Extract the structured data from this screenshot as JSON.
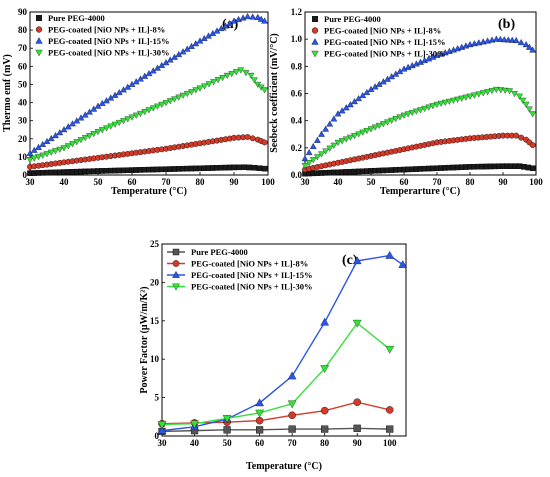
{
  "chart_data": [
    {
      "type": "scatter",
      "panel": "(a)",
      "xlabel": "Temperature (°C)",
      "ylabel": "Thermo emf (mV)",
      "xlim": [
        30,
        100
      ],
      "ylim": [
        0,
        90
      ],
      "xticks": [
        30,
        40,
        50,
        60,
        70,
        80,
        90,
        100
      ],
      "yticks": [
        0,
        10,
        20,
        30,
        40,
        50,
        60,
        70,
        80,
        90
      ],
      "legend_position": "top-left",
      "series": [
        {
          "name": "Pure PEG-4000",
          "marker": "square",
          "color": "#1a1a1a",
          "points": [
            [
              30,
              1.0
            ],
            [
              40,
              1.6
            ],
            [
              50,
              2.2
            ],
            [
              60,
              2.7
            ],
            [
              70,
              3.2
            ],
            [
              80,
              3.7
            ],
            [
              90,
              4.2
            ],
            [
              93,
              4.3
            ],
            [
              96,
              4.0
            ],
            [
              99,
              3.5
            ]
          ]
        },
        {
          "name": "PEG-coated [NiO NPs + IL]-8%",
          "marker": "circle",
          "color": "#d43a2a",
          "points": [
            [
              30,
              4.5
            ],
            [
              40,
              7.0
            ],
            [
              50,
              9.5
            ],
            [
              60,
              12.0
            ],
            [
              70,
              14.5
            ],
            [
              80,
              17.5
            ],
            [
              90,
              20.5
            ],
            [
              94,
              21.0
            ],
            [
              97,
              19.5
            ],
            [
              99,
              18.0
            ]
          ]
        },
        {
          "name": "PEG-coated [NiO NPs + IL]-15%",
          "marker": "triangle-up",
          "color": "#2a55e6",
          "points": [
            [
              30,
              12.0
            ],
            [
              40,
              25.0
            ],
            [
              50,
              38.0
            ],
            [
              60,
              50.0
            ],
            [
              70,
              62.0
            ],
            [
              80,
              74.0
            ],
            [
              90,
              85.0
            ],
            [
              94,
              87.5
            ],
            [
              97,
              87.0
            ],
            [
              99,
              85.0
            ]
          ]
        },
        {
          "name": "PEG-coated [NiO NPs + IL]-30%",
          "marker": "triangle-down",
          "color": "#35e03a",
          "points": [
            [
              30,
              8.5
            ],
            [
              40,
              15.0
            ],
            [
              50,
              24.0
            ],
            [
              60,
              32.0
            ],
            [
              70,
              40.0
            ],
            [
              80,
              48.0
            ],
            [
              88,
              55.0
            ],
            [
              92,
              58.0
            ],
            [
              95,
              55.0
            ],
            [
              97,
              50.0
            ],
            [
              99,
              47.0
            ]
          ]
        }
      ]
    },
    {
      "type": "scatter",
      "panel": "(b)",
      "xlabel": "Temperarture (°C)",
      "ylabel": "Seebeck coefficient (mV/°C)",
      "xlim": [
        30,
        100
      ],
      "ylim": [
        0,
        1.2
      ],
      "xticks": [
        30,
        40,
        50,
        60,
        70,
        80,
        90,
        100
      ],
      "yticks": [
        0,
        0.2,
        0.4,
        0.6,
        0.8,
        1.0,
        1.2
      ],
      "ytick_labels": [
        "0.0",
        "0.2",
        "0.4",
        "0.6",
        "0.8",
        "1.0",
        "1.2"
      ],
      "legend_position": "top-left",
      "series": [
        {
          "name": "Pure PEG-4000",
          "marker": "square",
          "color": "#1a1a1a",
          "points": [
            [
              30,
              0.01
            ],
            [
              40,
              0.02
            ],
            [
              50,
              0.03
            ],
            [
              60,
              0.04
            ],
            [
              70,
              0.05
            ],
            [
              80,
              0.06
            ],
            [
              90,
              0.065
            ],
            [
              95,
              0.065
            ],
            [
              99,
              0.05
            ]
          ]
        },
        {
          "name": "PEG-coated [NiO NPs + IL]-8%",
          "marker": "circle",
          "color": "#d43a2a",
          "points": [
            [
              30,
              0.04
            ],
            [
              40,
              0.09
            ],
            [
              50,
              0.14
            ],
            [
              60,
              0.19
            ],
            [
              70,
              0.24
            ],
            [
              80,
              0.27
            ],
            [
              90,
              0.29
            ],
            [
              94,
              0.29
            ],
            [
              97,
              0.26
            ],
            [
              99,
              0.22
            ]
          ]
        },
        {
          "name": "PEG-coated [NiO NPs + IL]-15%",
          "marker": "triangle-up",
          "color": "#2a55e6",
          "points": [
            [
              30,
              0.12
            ],
            [
              35,
              0.3
            ],
            [
              40,
              0.45
            ],
            [
              50,
              0.63
            ],
            [
              60,
              0.78
            ],
            [
              70,
              0.88
            ],
            [
              80,
              0.96
            ],
            [
              88,
              1.0
            ],
            [
              94,
              0.99
            ],
            [
              97,
              0.96
            ],
            [
              99,
              0.92
            ]
          ]
        },
        {
          "name": "PEG-coated [NiO NPs + IL]-30%",
          "marker": "triangle-down",
          "color": "#35e03a",
          "points": [
            [
              30,
              0.07
            ],
            [
              40,
              0.24
            ],
            [
              50,
              0.34
            ],
            [
              60,
              0.44
            ],
            [
              70,
              0.52
            ],
            [
              80,
              0.58
            ],
            [
              88,
              0.63
            ],
            [
              92,
              0.62
            ],
            [
              95,
              0.58
            ],
            [
              97,
              0.52
            ],
            [
              99,
              0.45
            ]
          ]
        }
      ]
    },
    {
      "type": "line",
      "panel": "(c)",
      "xlabel": "Temperature (°C)",
      "ylabel": "Power Factor (μW/m/K²)",
      "xlim": [
        30,
        105
      ],
      "ylim": [
        0,
        25
      ],
      "xticks": [
        30,
        40,
        50,
        60,
        70,
        80,
        90,
        100
      ],
      "yticks": [
        0,
        5,
        10,
        15,
        20,
        25
      ],
      "legend_position": "top-left",
      "series": [
        {
          "name": "Pure PEG-4000",
          "marker": "square",
          "color": "#555555",
          "points": [
            [
              30,
              0.6
            ],
            [
              40,
              0.7
            ],
            [
              50,
              0.8
            ],
            [
              60,
              0.8
            ],
            [
              70,
              0.9
            ],
            [
              80,
              0.9
            ],
            [
              90,
              1.0
            ],
            [
              100,
              0.9
            ]
          ]
        },
        {
          "name": "PEG-coated [NiO NPs + IL]-8%",
          "marker": "circle",
          "color": "#d43a2a",
          "points": [
            [
              30,
              1.6
            ],
            [
              40,
              1.7
            ],
            [
              50,
              1.8
            ],
            [
              60,
              2.0
            ],
            [
              70,
              2.7
            ],
            [
              80,
              3.3
            ],
            [
              90,
              4.4
            ],
            [
              100,
              3.4
            ]
          ]
        },
        {
          "name": "PEG-coated [NiO NPs + IL]-15%",
          "marker": "triangle-up",
          "color": "#2a55e6",
          "points": [
            [
              30,
              0.7
            ],
            [
              40,
              1.2
            ],
            [
              50,
              2.2
            ],
            [
              60,
              4.3
            ],
            [
              70,
              7.8
            ],
            [
              80,
              14.8
            ],
            [
              90,
              22.8
            ],
            [
              100,
              23.5
            ],
            [
              104,
              22.3
            ]
          ]
        },
        {
          "name": "PEG-coated [NiO NPs + IL]-30%",
          "marker": "triangle-down",
          "color": "#35e03a",
          "points": [
            [
              30,
              1.5
            ],
            [
              40,
              1.6
            ],
            [
              50,
              2.3
            ],
            [
              60,
              3.0
            ],
            [
              70,
              4.2
            ],
            [
              80,
              8.8
            ],
            [
              90,
              14.7
            ],
            [
              100,
              11.3
            ]
          ]
        }
      ]
    }
  ]
}
